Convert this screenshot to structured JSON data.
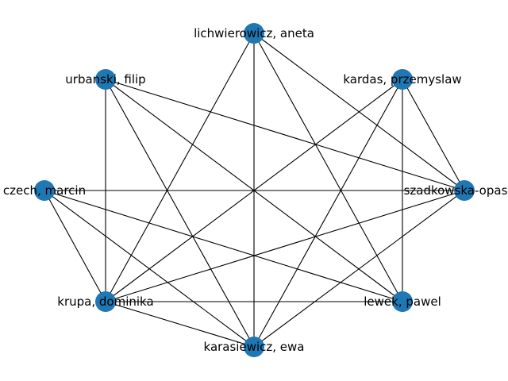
{
  "graph": {
    "node_color": "#1f77b4",
    "edge_color": "#000000",
    "nodes": [
      {
        "id": "lichwierowicz",
        "label": "lichwierowicz, aneta"
      },
      {
        "id": "kardas",
        "label": "kardas, przemyslaw"
      },
      {
        "id": "szadkowska",
        "label": "szadkowska-opasiak"
      },
      {
        "id": "lewek",
        "label": "lewek, pawel"
      },
      {
        "id": "karasiewicz",
        "label": "karasiewicz, ewa"
      },
      {
        "id": "krupa",
        "label": "krupa, dominika"
      },
      {
        "id": "czech",
        "label": "czech, marcin"
      },
      {
        "id": "urbanski",
        "label": "urbanski, filip"
      }
    ],
    "edges": [
      [
        "lichwierowicz",
        "szadkowska"
      ],
      [
        "lichwierowicz",
        "lewek"
      ],
      [
        "lichwierowicz",
        "karasiewicz"
      ],
      [
        "lichwierowicz",
        "krupa"
      ],
      [
        "kardas",
        "szadkowska"
      ],
      [
        "kardas",
        "lewek"
      ],
      [
        "kardas",
        "karasiewicz"
      ],
      [
        "kardas",
        "krupa"
      ],
      [
        "szadkowska",
        "czech"
      ],
      [
        "szadkowska",
        "urbanski"
      ],
      [
        "szadkowska",
        "karasiewicz"
      ],
      [
        "szadkowska",
        "krupa"
      ],
      [
        "lewek",
        "czech"
      ],
      [
        "lewek",
        "urbanski"
      ],
      [
        "lewek",
        "krupa"
      ],
      [
        "karasiewicz",
        "czech"
      ],
      [
        "karasiewicz",
        "urbanski"
      ],
      [
        "karasiewicz",
        "krupa"
      ],
      [
        "krupa",
        "czech"
      ],
      [
        "krupa",
        "urbanski"
      ]
    ]
  }
}
